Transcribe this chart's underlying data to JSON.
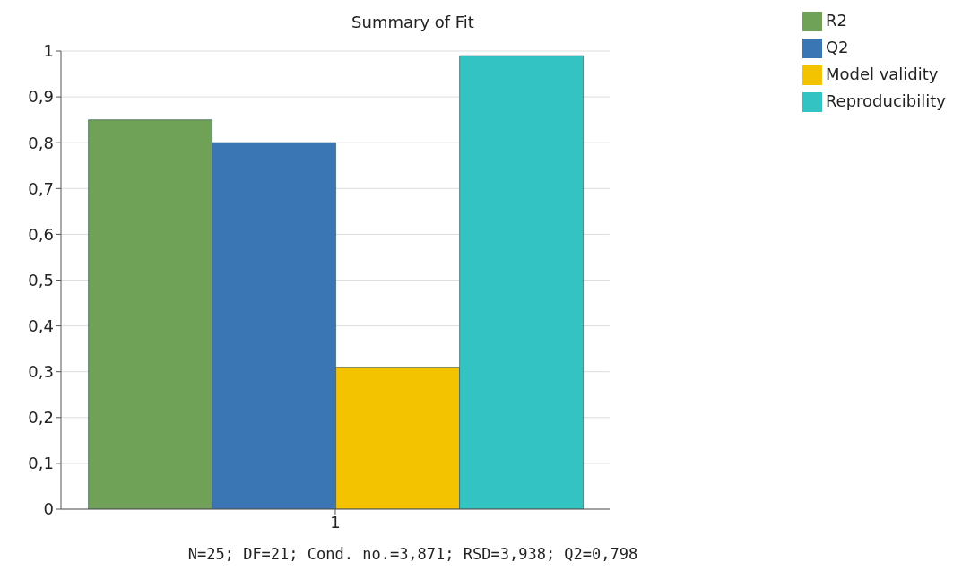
{
  "chart_data": {
    "type": "bar",
    "title": "Summary of Fit",
    "categories": [
      "1"
    ],
    "series": [
      {
        "name": "R2",
        "color": "#6fa157",
        "values": [
          0.85
        ]
      },
      {
        "name": "Q2",
        "color": "#3b76b4",
        "values": [
          0.8
        ]
      },
      {
        "name": "Model validity",
        "color": "#f4c300",
        "values": [
          0.31
        ]
      },
      {
        "name": "Reproducibility",
        "color": "#34c3c3",
        "values": [
          0.99
        ]
      }
    ],
    "ylim": [
      0,
      1
    ],
    "yticks": [
      0,
      {
        "value": 0.1,
        "label": "0,1"
      },
      {
        "value": 0.2,
        "label": "0,2"
      },
      {
        "value": 0.3,
        "label": "0,3"
      },
      {
        "value": 0.4,
        "label": "0,4"
      },
      {
        "value": 0.5,
        "label": "0,5"
      },
      {
        "value": 0.6,
        "label": "0,6"
      },
      {
        "value": 0.7,
        "label": "0,7"
      },
      {
        "value": 0.8,
        "label": "0,8"
      },
      {
        "value": 0.9,
        "label": "0,9"
      },
      1
    ],
    "grid": "y",
    "legend": "top right",
    "annotations": [
      "N=25; DF=21; Cond. no.=3,871; RSD=3,938; Q2=0,798"
    ]
  }
}
